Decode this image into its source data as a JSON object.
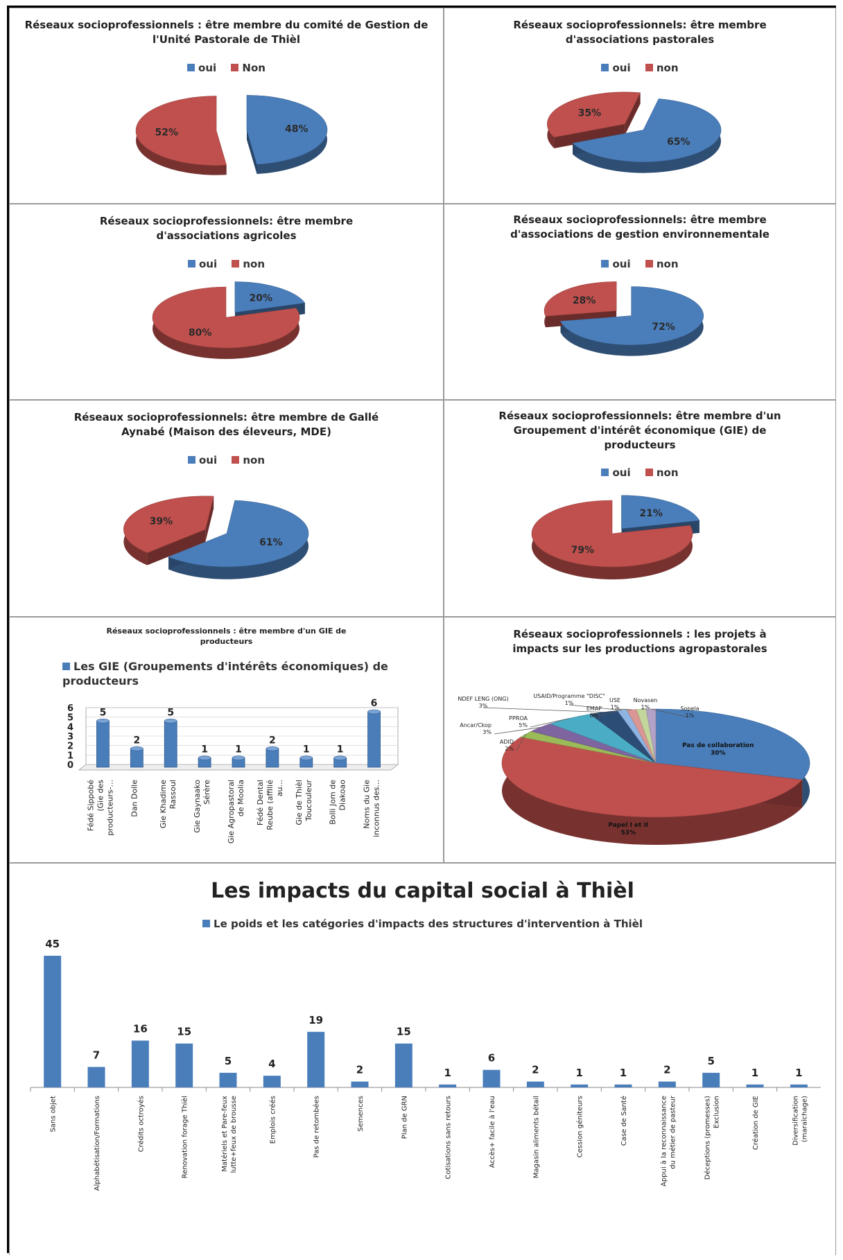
{
  "colors": {
    "oui": "#4a7ebb",
    "non": "#c0504d",
    "bar": "#4a7ebb"
  },
  "chart_data": [
    {
      "type": "pie",
      "title": "Réseaux socioprofessionnels : être membre du comité de Gestion de l'Unité Pastorale de Thièl",
      "legend": [
        "oui",
        "Non"
      ],
      "slices": [
        {
          "label": "oui",
          "value": 48,
          "text": "48%"
        },
        {
          "label": "Non",
          "value": 52,
          "text": "52%"
        }
      ]
    },
    {
      "type": "pie",
      "title": "Réseaux socioprofessionnels: être membre d'associations pastorales",
      "legend": [
        "oui",
        "non"
      ],
      "slices": [
        {
          "label": "oui",
          "value": 65,
          "text": "65%"
        },
        {
          "label": "non",
          "value": 35,
          "text": "35%"
        }
      ]
    },
    {
      "type": "pie",
      "title": "Réseaux socioprofessionnels: être membre d'associations agricoles",
      "legend": [
        "oui",
        "non"
      ],
      "slices": [
        {
          "label": "oui",
          "value": 20,
          "text": "20%"
        },
        {
          "label": "non",
          "value": 80,
          "text": "80%"
        }
      ]
    },
    {
      "type": "pie",
      "title": "Réseaux socioprofessionnels: être membre d'associations de gestion environnementale",
      "legend": [
        "oui",
        "non"
      ],
      "slices": [
        {
          "label": "oui",
          "value": 72,
          "text": "72%"
        },
        {
          "label": "non",
          "value": 28,
          "text": "28%"
        }
      ]
    },
    {
      "type": "pie",
      "title": "Réseaux socioprofessionnels: être membre de Gallé Aynabé (Maison des éleveurs, MDE)",
      "legend": [
        "oui",
        "non"
      ],
      "slices": [
        {
          "label": "oui",
          "value": 61,
          "text": "61%"
        },
        {
          "label": "non",
          "value": 39,
          "text": "39%"
        }
      ]
    },
    {
      "type": "pie",
      "title": "Réseaux socioprofessionnels: être membre d'un Groupement d'intérêt économique (GIE) de producteurs",
      "legend": [
        "oui",
        "non"
      ],
      "slices": [
        {
          "label": "oui",
          "value": 21,
          "text": "21%"
        },
        {
          "label": "non",
          "value": 79,
          "text": "79%"
        }
      ]
    },
    {
      "type": "bar",
      "title": "Réseaux socioprofessionnels : être membre d'un GIE de producteurs",
      "series_name": "Les GIE (Groupements d'intérêts économiques) de producteurs",
      "categories": [
        "Fédé Sippobé (Gie des producteurs-...",
        "Dan Dolle",
        "Gie Khadime Rassoul",
        "Gie Gaynaako Sérère",
        "Gie Agropastoral de Moolia",
        "Fédé Dental Reube (affilié au...",
        "Gie de Thièl Toucouleur",
        "Bolli Jom de Diakoao",
        "Noms du Gie inconnus des..."
      ],
      "values": [
        5,
        2,
        5,
        1,
        1,
        2,
        1,
        1,
        6
      ],
      "ytick_labels": [
        "0",
        "1",
        "2",
        "3",
        "4",
        "5",
        "6"
      ],
      "ylim": [
        0,
        6
      ]
    },
    {
      "type": "pie",
      "title": "Réseaux socioprofessionnels : les projets à impacts sur les productions agropastorales",
      "slices": [
        {
          "label": "Pas de collaboration",
          "value": 30,
          "text": "30%"
        },
        {
          "label": "Papel I et II",
          "value": 53,
          "text": "53%"
        },
        {
          "label": "ADID",
          "value": 2,
          "text": "2%"
        },
        {
          "label": "Ancar/Ckop",
          "value": 3,
          "text": "3%"
        },
        {
          "label": "PPROA",
          "value": 5,
          "text": "5%"
        },
        {
          "label": "NDEF LENG (ONG)",
          "value": 3,
          "text": "3%"
        },
        {
          "label": "EMAP",
          "value": 0,
          "text": "0%"
        },
        {
          "label": "USAID/Programme \"DISC\"",
          "value": 1,
          "text": "1%"
        },
        {
          "label": "USE",
          "value": 1,
          "text": "1%"
        },
        {
          "label": "Novasen",
          "value": 1,
          "text": "1%"
        },
        {
          "label": "Sopela",
          "value": 1,
          "text": "1%"
        }
      ]
    },
    {
      "type": "bar",
      "title": "Les impacts du capital social à Thièl",
      "series_name": "Le poids et les catégories d'impacts des structures d'intervention à Thièl",
      "categories": [
        "Sans objet",
        "Alphabétisation/Formations",
        "Crédits octroyés",
        "Renovation forage Thièl",
        "Matériels et Pare-feux lutte+feux de brousse",
        "Emplois créés",
        "Pas de retombées",
        "Semences",
        "Plan de GRN",
        "Cotisations sans retours",
        "Accès+ facile à l'eau",
        "Magasin aliments bétail",
        "Cession géniteurs",
        "Case de Santé",
        "Appui à la reconnaissance du métier de pasteur",
        "Déceptions (promesses) Exclusion",
        "Création de GIE",
        "Diversification (maraîchage)"
      ],
      "values": [
        45,
        7,
        16,
        15,
        5,
        4,
        19,
        2,
        15,
        1,
        6,
        2,
        1,
        1,
        2,
        5,
        1,
        1
      ]
    }
  ]
}
